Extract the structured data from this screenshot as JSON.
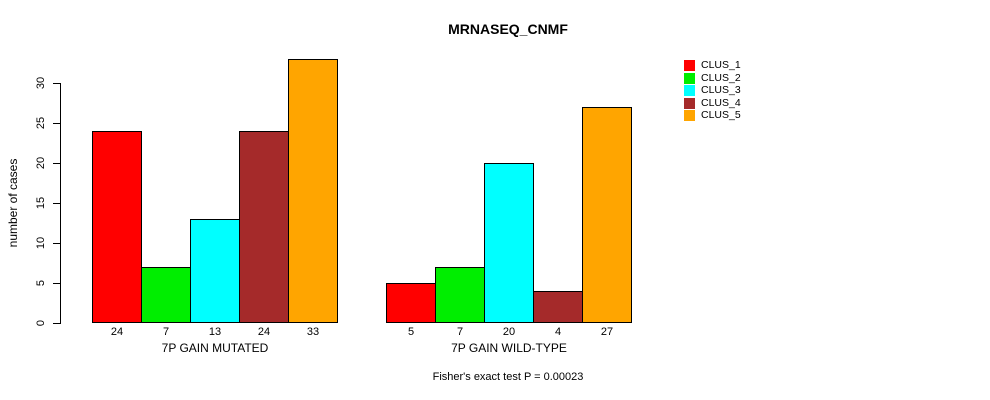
{
  "chart_data": {
    "type": "bar",
    "title": "MRNASEQ_CNMF",
    "ylabel": "number of cases",
    "ylim": [
      0,
      33
    ],
    "yticks": [
      0,
      5,
      10,
      15,
      20,
      25,
      30
    ],
    "grid": false,
    "legend_position": "right",
    "bar_value_labels_shown": true,
    "series": [
      {
        "name": "CLUS_1",
        "color": "#FF0000"
      },
      {
        "name": "CLUS_2",
        "color": "#00EE00"
      },
      {
        "name": "CLUS_3",
        "color": "#00FFFF"
      },
      {
        "name": "CLUS_4",
        "color": "#A52A2A"
      },
      {
        "name": "CLUS_5",
        "color": "#FFA500"
      }
    ],
    "groups": [
      {
        "label": "7P GAIN MUTATED",
        "values": [
          24,
          7,
          13,
          24,
          33
        ]
      },
      {
        "label": "7P GAIN WILD-TYPE",
        "values": [
          5,
          7,
          20,
          4,
          27
        ]
      }
    ],
    "annotation": "Fisher's exact test P = 0.00023"
  }
}
